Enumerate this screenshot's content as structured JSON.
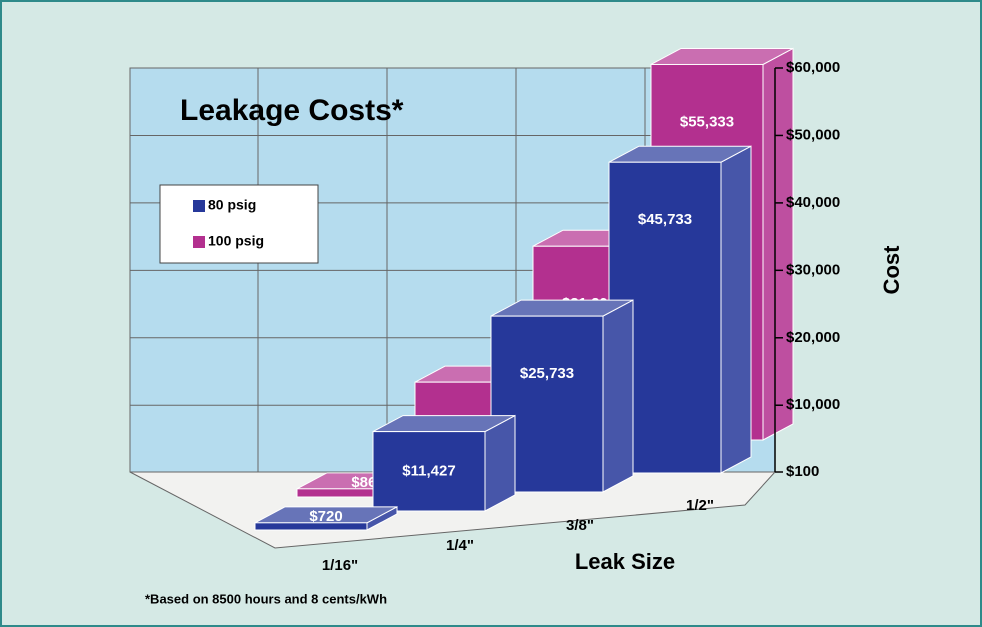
{
  "chart_data": {
    "type": "bar3d",
    "title": "Leakage Costs*",
    "footnote": "*Based on 8500 hours and 8 cents/kWh",
    "x_label": "Leak Size",
    "y_label": "Cost",
    "categories": [
      "1/16\"",
      "1/4\"",
      "3/8\"",
      "1/2\""
    ],
    "series": [
      {
        "name": "80 psig",
        "color": "#26389a",
        "values": [
          720,
          11427,
          25733,
          45733
        ],
        "value_labels": [
          "$720",
          "$11,427",
          "$25,733",
          "$45,733"
        ]
      },
      {
        "name": "100 psig",
        "color": "#b3308f",
        "values": [
          865,
          13867,
          31200,
          55333
        ],
        "value_labels": [
          "$865",
          "$13,867",
          "$31,200",
          "$55,333"
        ]
      }
    ],
    "ylim": [
      100,
      60000
    ],
    "yticks": [
      {
        "value": 100,
        "label": "$100"
      },
      {
        "value": 10000,
        "label": "$10,000"
      },
      {
        "value": 20000,
        "label": "$20,000"
      },
      {
        "value": 30000,
        "label": "$30,000"
      },
      {
        "value": 40000,
        "label": "$40,000"
      },
      {
        "value": 50000,
        "label": "$50,000"
      },
      {
        "value": 60000,
        "label": "$60,000"
      }
    ],
    "grid": true,
    "legend": "upper left"
  }
}
